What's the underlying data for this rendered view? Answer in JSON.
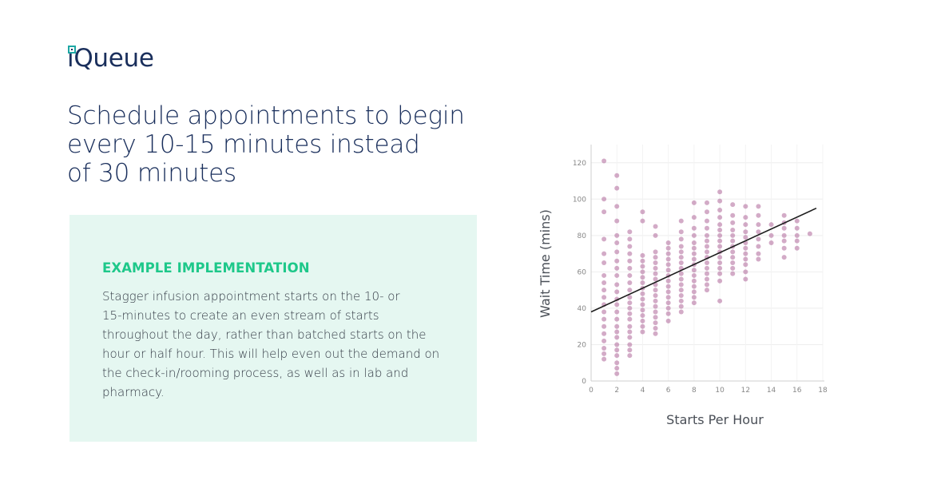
{
  "brand": {
    "name": "iQueue"
  },
  "headline": {
    "lines": [
      "Schedule appointments to begin",
      "every 10-15 minutes instead",
      "of 30 minutes"
    ]
  },
  "panel": {
    "title": "EXAMPLE IMPLEMENTATION",
    "body_lines": [
      "Stagger infusion appointment starts on the 10- or",
      "15-minutes to create an even stream of starts",
      "throughout the day, rather than batched starts on the",
      "hour or half hour. This will help even out the demand on",
      "the check-in/rooming process, as well as in lab and",
      "pharmacy."
    ]
  },
  "colors": {
    "navy": "#1a2f5c",
    "green": "#1ec88a",
    "panel": "#e5f7f1",
    "point": "#a8578f"
  },
  "chart_data": {
    "type": "scatter",
    "xlabel": "Starts Per Hour",
    "ylabel": "Wait Time (mins)",
    "xlim": [
      0,
      18
    ],
    "ylim": [
      0,
      130
    ],
    "xticks": [
      0,
      2,
      4,
      6,
      8,
      10,
      12,
      14,
      16,
      18
    ],
    "yticks": [
      0,
      20,
      40,
      60,
      80,
      100,
      120
    ],
    "grid": true,
    "trendline": {
      "x": [
        0,
        17.5
      ],
      "y": [
        38,
        95
      ]
    },
    "columns": [
      {
        "x": 1,
        "y": [
          121,
          100,
          93,
          78,
          70,
          65,
          58,
          54,
          50,
          46,
          42,
          38,
          34,
          30,
          26,
          22,
          18,
          15,
          12
        ]
      },
      {
        "x": 2,
        "y": [
          113,
          106,
          96,
          88,
          80,
          76,
          71,
          66,
          62,
          58,
          53,
          49,
          45,
          42,
          38,
          34,
          30,
          27,
          24,
          20,
          17,
          14,
          10,
          7,
          4
        ]
      },
      {
        "x": 3,
        "y": [
          82,
          78,
          74,
          70,
          66,
          62,
          58,
          54,
          50,
          46,
          43,
          40,
          37,
          34,
          30,
          27,
          24,
          20,
          17,
          14
        ]
      },
      {
        "x": 4,
        "y": [
          93,
          88,
          69,
          66,
          63,
          60,
          57,
          54,
          51,
          48,
          45,
          42,
          39,
          36,
          33,
          30,
          27
        ]
      },
      {
        "x": 5,
        "y": [
          85,
          80,
          71,
          68,
          65,
          62,
          59,
          56,
          53,
          50,
          47,
          44,
          41,
          38,
          35,
          32,
          29,
          26
        ]
      },
      {
        "x": 6,
        "y": [
          76,
          73,
          70,
          67,
          64,
          61,
          58,
          55,
          52,
          49,
          46,
          43,
          40,
          37,
          33
        ]
      },
      {
        "x": 7,
        "y": [
          88,
          82,
          78,
          74,
          71,
          68,
          65,
          62,
          59,
          56,
          53,
          50,
          47,
          44,
          41,
          38
        ]
      },
      {
        "x": 8,
        "y": [
          98,
          90,
          84,
          80,
          76,
          73,
          70,
          67,
          64,
          61,
          58,
          55,
          52,
          49,
          46,
          43
        ]
      },
      {
        "x": 9,
        "y": [
          98,
          93,
          88,
          84,
          80,
          77,
          74,
          71,
          68,
          65,
          62,
          59,
          56,
          53,
          50
        ]
      },
      {
        "x": 10,
        "y": [
          104,
          99,
          94,
          90,
          86,
          83,
          80,
          77,
          74,
          71,
          68,
          65,
          62,
          59,
          55,
          44
        ]
      },
      {
        "x": 11,
        "y": [
          97,
          91,
          87,
          83,
          80,
          77,
          74,
          71,
          68,
          65,
          62,
          59
        ]
      },
      {
        "x": 12,
        "y": [
          96,
          90,
          86,
          82,
          79,
          76,
          73,
          70,
          67,
          64,
          60,
          56
        ]
      },
      {
        "x": 13,
        "y": [
          96,
          91,
          86,
          82,
          78,
          74,
          70,
          67
        ]
      },
      {
        "x": 14,
        "y": [
          86,
          80,
          76
        ]
      },
      {
        "x": 15,
        "y": [
          91,
          87,
          84,
          80,
          77,
          73,
          68
        ]
      },
      {
        "x": 16,
        "y": [
          88,
          84,
          80,
          77,
          73
        ]
      },
      {
        "x": 17,
        "y": [
          81
        ]
      }
    ]
  }
}
